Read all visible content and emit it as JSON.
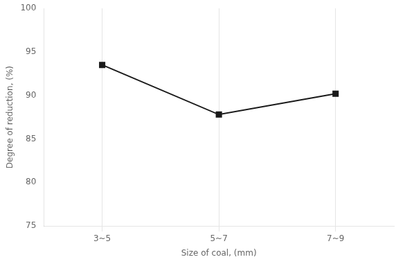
{
  "chart_data": {
    "type": "line",
    "categories": [
      "3~5",
      "5~7",
      "7~9"
    ],
    "values": [
      93.5,
      87.8,
      90.2
    ],
    "color": "#1a1a1a",
    "marker": "square",
    "xlabel": "Size of coal, (mm)",
    "ylabel": "Degree of reduction, (%)",
    "ylim": [
      75,
      100
    ],
    "yticks": [
      75,
      80,
      85,
      90,
      95,
      100
    ],
    "grid": "x"
  }
}
